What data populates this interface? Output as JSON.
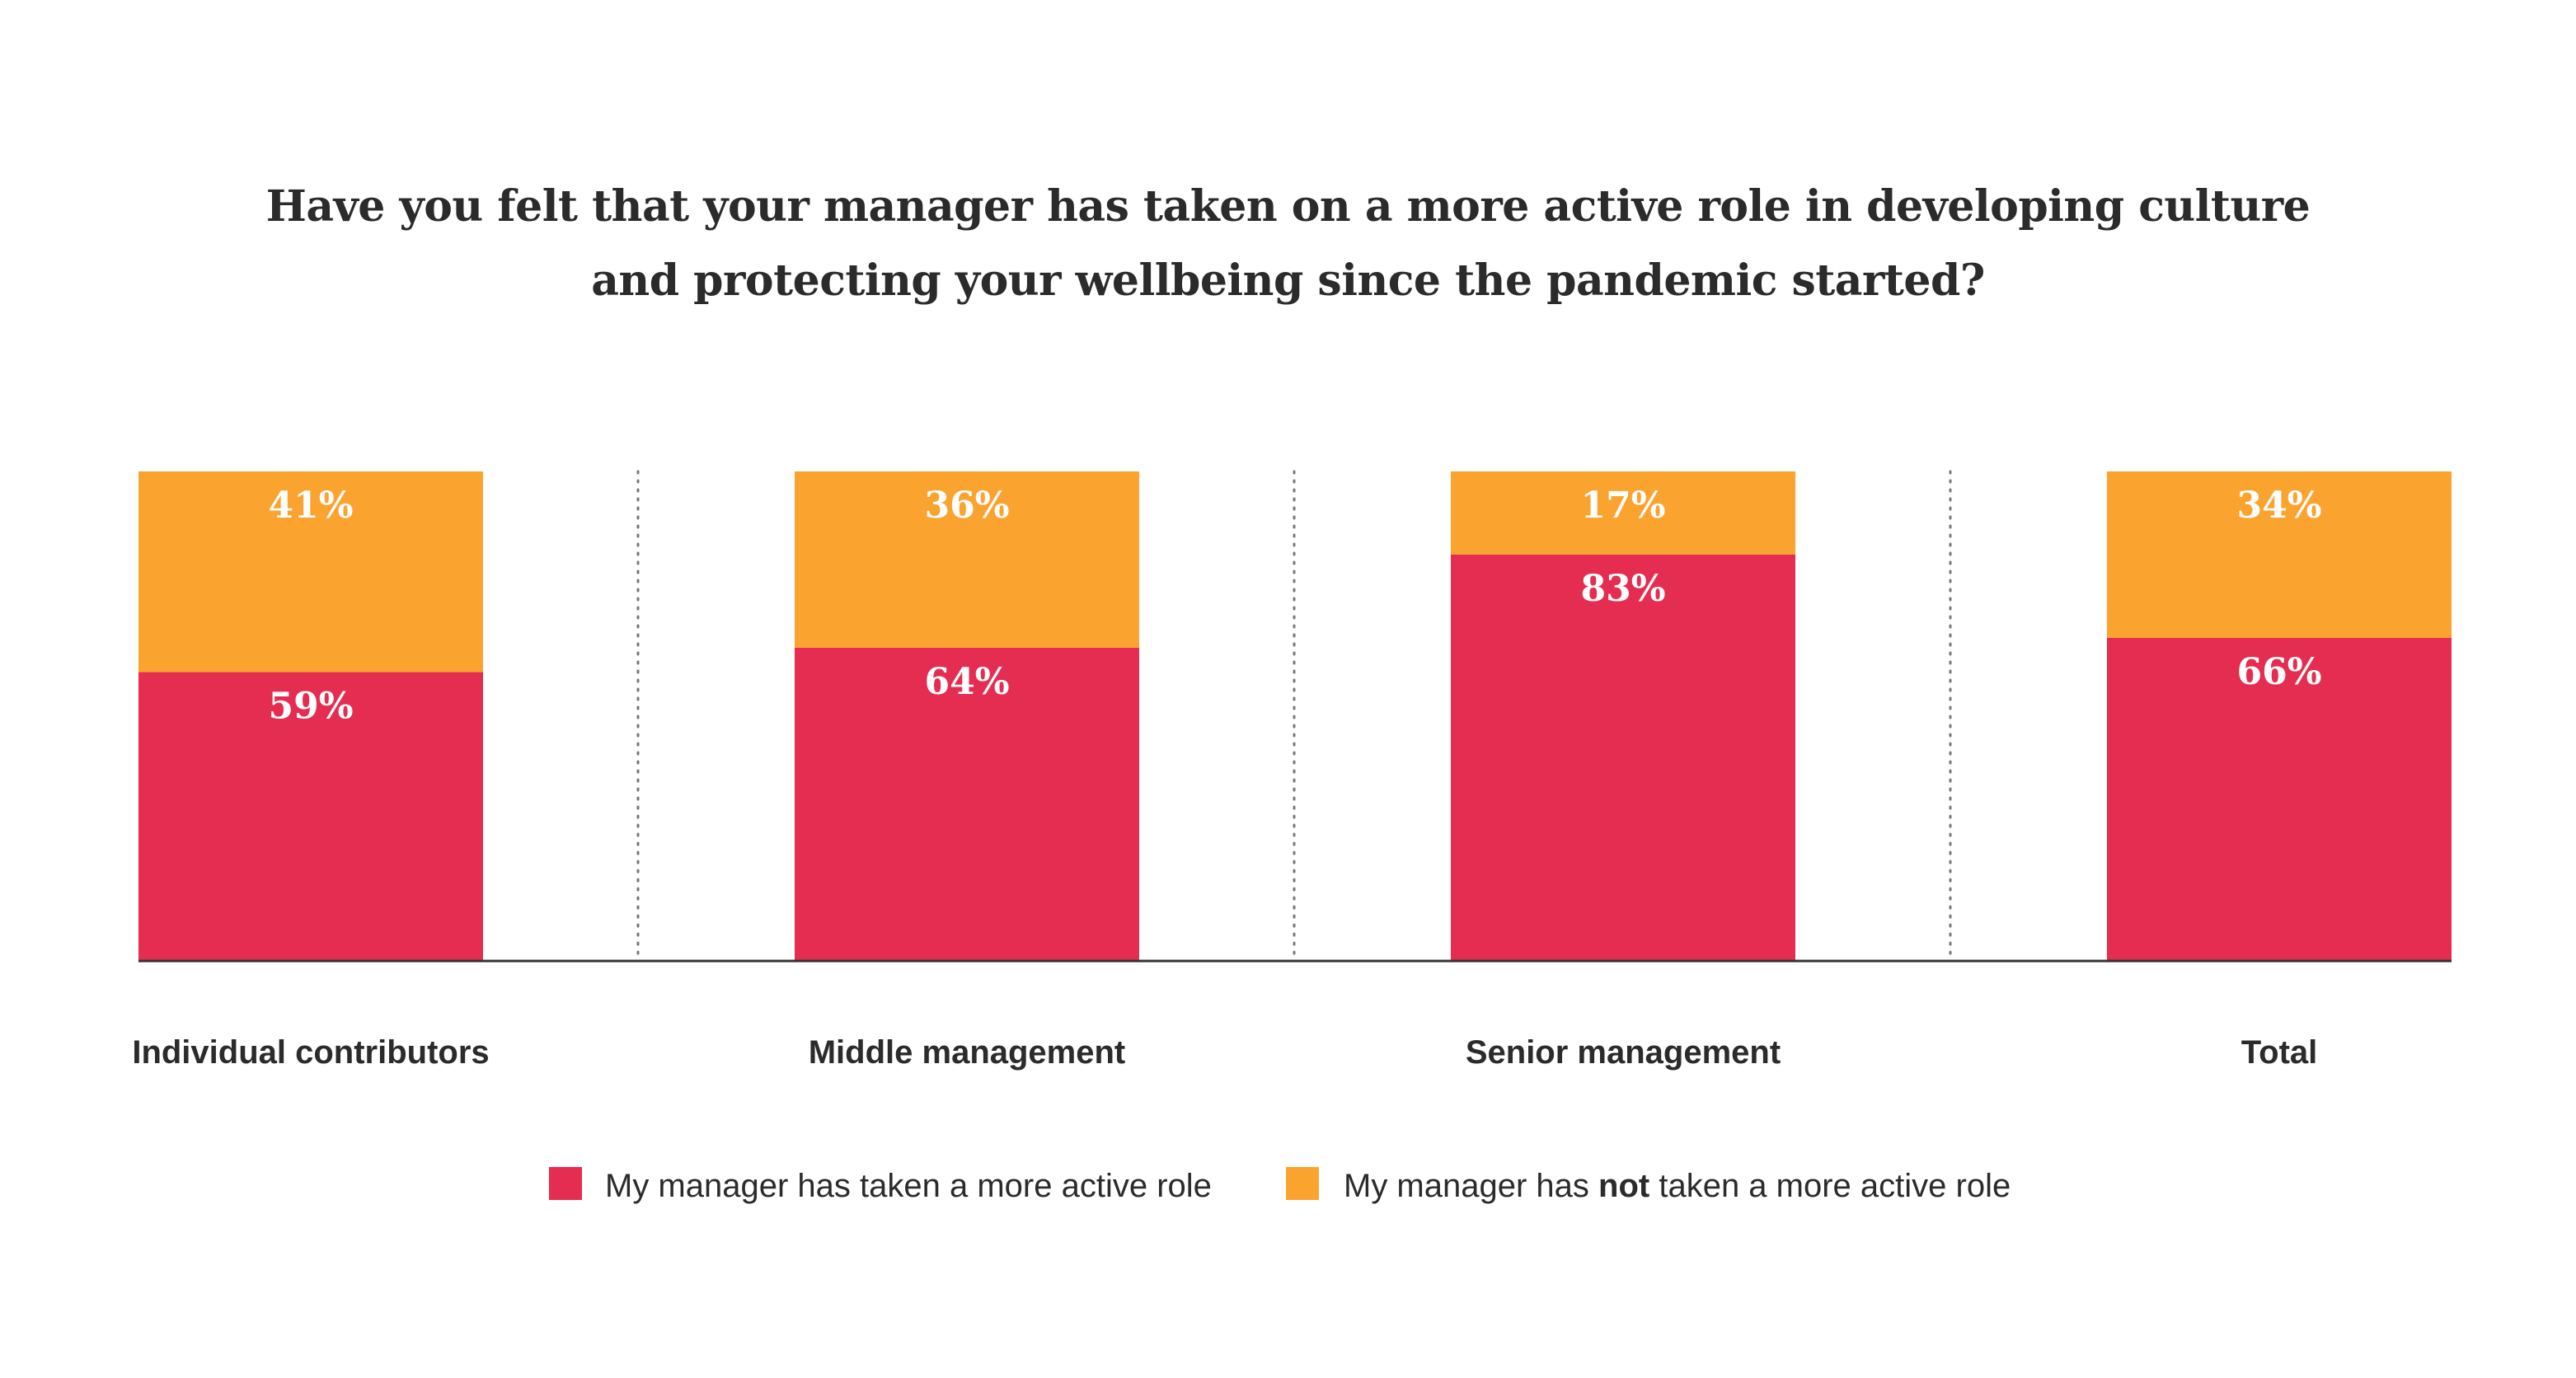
{
  "chart_data": {
    "type": "bar",
    "stacked": true,
    "title": "Have you felt that your manager has taken on a more active role in developing culture and protecting your wellbeing since the pandemic started?",
    "title_lines": [
      "Have you felt that your manager has taken on a more active role in developing culture",
      "and protecting your wellbeing since the pandemic started?"
    ],
    "categories": [
      "Individual contributors",
      "Middle management",
      "Senior management",
      "Total"
    ],
    "series": [
      {
        "name": "My manager has taken a more active role",
        "values": [
          59,
          64,
          83,
          66
        ],
        "labels": [
          "59%",
          "64%",
          "83%",
          "66%"
        ],
        "color": "#e52d51"
      },
      {
        "name": "My manager has not taken a more active role",
        "name_parts": [
          "My manager has ",
          "not",
          " taken a more active role"
        ],
        "values": [
          41,
          36,
          17,
          34
        ],
        "labels": [
          "41%",
          "36%",
          "17%",
          "34%"
        ],
        "color": "#fba32f"
      }
    ],
    "ylim": [
      0,
      100
    ],
    "xlabel": "",
    "ylabel": "",
    "legend": "bottom",
    "grid": false
  },
  "colors": {
    "axis": "#333333",
    "separator": "#777777",
    "text": "#2b2b2b"
  }
}
